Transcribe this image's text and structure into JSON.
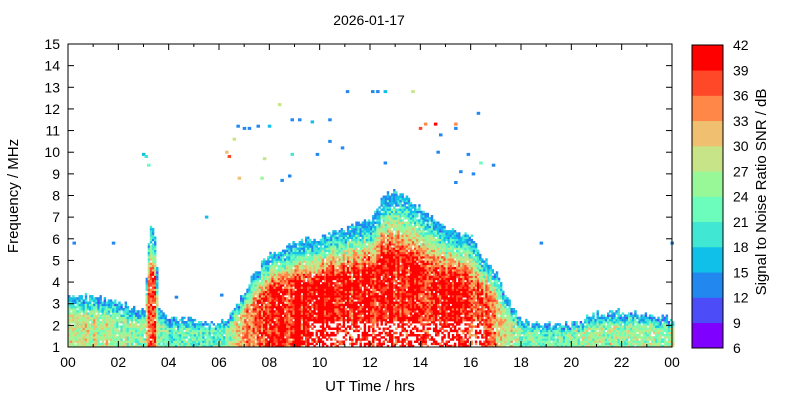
{
  "chart_data": {
    "type": "heatmap",
    "title": "2026-01-17",
    "xlabel": "UT Time / hrs",
    "ylabel": "Frequency / MHz",
    "colorbar_label": "Signal to Noise Ratio SNR / dB",
    "xlim": [
      0,
      24
    ],
    "ylim": [
      1,
      15
    ],
    "x_ticks": [
      "00",
      "02",
      "04",
      "06",
      "08",
      "10",
      "12",
      "14",
      "16",
      "18",
      "20",
      "22",
      "00"
    ],
    "y_ticks": [
      "1",
      "2",
      "3",
      "4",
      "5",
      "6",
      "7",
      "8",
      "9",
      "10",
      "11",
      "12",
      "13",
      "14",
      "15"
    ],
    "colorbar_ticks": [
      "6",
      "9",
      "12",
      "15",
      "18",
      "21",
      "24",
      "27",
      "30",
      "33",
      "36",
      "39",
      "42"
    ],
    "colorbar_range": [
      6,
      42
    ],
    "colorbar_colors": [
      "#7f00ff",
      "#4c4cf8",
      "#2288f0",
      "#10c0e8",
      "#40e8d4",
      "#6cfcbc",
      "#98f898",
      "#c8e488",
      "#f0c070",
      "#ff8848",
      "#ff4828",
      "#ff0000"
    ],
    "echo_envelope": {
      "hours": [
        0,
        1,
        2,
        3,
        3.2,
        3.4,
        3.6,
        4,
        5,
        6,
        6.5,
        7,
        7.5,
        8,
        9,
        10,
        11,
        12,
        12.5,
        13,
        14,
        15,
        16,
        16.5,
        17,
        17.5,
        18,
        19,
        20,
        21,
        22,
        23,
        24
      ],
      "upper_mhz": [
        3.3,
        3.3,
        3.0,
        2.6,
        6.5,
        6.5,
        2.5,
        2.3,
        2.2,
        2.0,
        2.6,
        3.6,
        4.6,
        5.3,
        5.8,
        6.0,
        6.5,
        6.8,
        8.0,
        8.2,
        7.4,
        6.5,
        6.0,
        5.0,
        4.4,
        3.0,
        2.1,
        2.0,
        2.0,
        2.5,
        2.6,
        2.4,
        2.3
      ],
      "peak_snr_db": [
        28,
        28,
        26,
        24,
        38,
        38,
        24,
        22,
        22,
        22,
        26,
        32,
        38,
        40,
        41,
        41,
        41,
        41,
        41,
        41,
        41,
        41,
        40,
        38,
        34,
        28,
        24,
        22,
        24,
        26,
        26,
        25,
        25
      ]
    },
    "sporadic_echoes": [
      [
        0.24,
        5.8,
        13
      ],
      [
        1.8,
        5.8,
        13
      ],
      [
        3.0,
        9.9,
        15
      ],
      [
        3.1,
        9.8,
        18
      ],
      [
        3.2,
        9.4,
        21
      ],
      [
        4.3,
        3.3,
        13
      ],
      [
        5.5,
        7.0,
        15
      ],
      [
        6.1,
        3.4,
        13
      ],
      [
        6.3,
        10.0,
        30
      ],
      [
        6.4,
        9.8,
        36
      ],
      [
        6.6,
        10.6,
        27
      ],
      [
        6.75,
        11.2,
        13
      ],
      [
        7.0,
        11.1,
        13
      ],
      [
        7.2,
        11.1,
        13
      ],
      [
        7.55,
        11.2,
        13
      ],
      [
        8.0,
        11.2,
        15
      ],
      [
        8.4,
        12.2,
        27
      ],
      [
        7.8,
        9.7,
        27
      ],
      [
        6.8,
        8.8,
        30
      ],
      [
        7.7,
        8.8,
        24
      ],
      [
        8.5,
        8.7,
        13
      ],
      [
        8.8,
        8.9,
        13
      ],
      [
        8.9,
        9.9,
        18
      ],
      [
        8.9,
        11.5,
        13
      ],
      [
        9.2,
        11.5,
        13
      ],
      [
        9.7,
        11.4,
        15
      ],
      [
        9.9,
        9.9,
        13
      ],
      [
        10.4,
        10.5,
        13
      ],
      [
        10.4,
        11.5,
        13
      ],
      [
        10.9,
        10.2,
        13
      ],
      [
        11.1,
        12.8,
        13
      ],
      [
        12.1,
        12.8,
        13
      ],
      [
        12.3,
        12.8,
        13
      ],
      [
        12.6,
        12.8,
        15
      ],
      [
        12.6,
        9.5,
        13
      ],
      [
        13.7,
        12.8,
        27
      ],
      [
        14.0,
        11.1,
        36
      ],
      [
        14.2,
        11.3,
        33
      ],
      [
        14.6,
        11.3,
        39
      ],
      [
        14.8,
        10.8,
        13
      ],
      [
        14.7,
        10.0,
        13
      ],
      [
        15.4,
        11.3,
        33
      ],
      [
        15.4,
        11.1,
        13
      ],
      [
        15.6,
        9.1,
        13
      ],
      [
        15.4,
        8.6,
        13
      ],
      [
        16.1,
        9.0,
        13
      ],
      [
        15.9,
        9.9,
        13
      ],
      [
        16.3,
        11.8,
        13
      ],
      [
        16.4,
        9.5,
        21
      ],
      [
        16.9,
        9.4,
        13
      ],
      [
        18.8,
        5.8,
        13
      ],
      [
        24.0,
        5.8,
        13
      ]
    ]
  }
}
